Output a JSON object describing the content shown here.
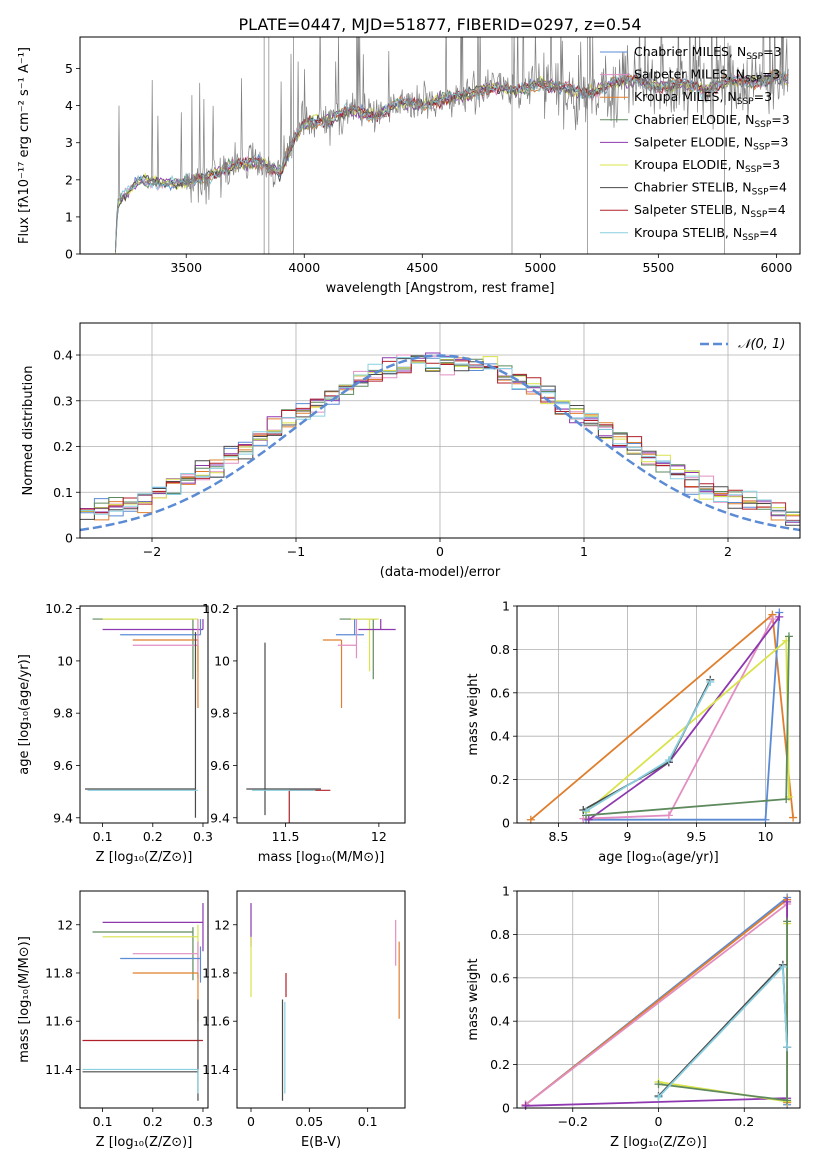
{
  "figure": {
    "title": "PLATE=0447, MJD=51877, FIBERID=0297, z=0.54"
  },
  "colors": {
    "chabrier_miles": "#5b8bd4",
    "salpeter_miles": "#e38ec2",
    "kroupa_miles": "#df7f2e",
    "chabrier_elodie": "#5f8a5e",
    "salpeter_elodie": "#8e38b0",
    "kroupa_elodie": "#d9e34a",
    "chabrier_stelib": "#4a4a4a",
    "salpeter_stelib": "#b0202a",
    "kroupa_stelib": "#89cfe0",
    "data_gray": "#808080",
    "gaussian": "#5b8bd4",
    "grid": "#b0b0b0"
  },
  "chart_data": [
    {
      "id": "spectrum",
      "type": "line",
      "title": "PLATE=0447, MJD=51877, FIBERID=0297, z=0.54",
      "xlabel": "wavelength [Angstrom, rest frame]",
      "ylabel": "Flux [fλ10⁻¹⁷ erg cm⁻² s⁻¹ A⁻¹]",
      "xlim": [
        3050,
        6100
      ],
      "ylim": [
        0,
        5.85
      ],
      "xticks": [
        3500,
        4000,
        4500,
        5000,
        5500,
        6000
      ],
      "yticks": [
        0,
        1,
        2,
        3,
        4,
        5
      ],
      "grid": false,
      "legend_placement": "top-right",
      "legend": [
        {
          "label": "Chabrier MILES, N",
          "sub": "SSP",
          "tail": "=3",
          "color_key": "chabrier_miles"
        },
        {
          "label": "Salpeter MILES, N",
          "sub": "SSP",
          "tail": "=3",
          "color_key": "salpeter_miles"
        },
        {
          "label": "Kroupa MILES, N",
          "sub": "SSP",
          "tail": "=3",
          "color_key": "kroupa_miles"
        },
        {
          "label": "Chabrier ELODIE, N",
          "sub": "SSP",
          "tail": "=3",
          "color_key": "chabrier_elodie"
        },
        {
          "label": "Salpeter ELODIE, N",
          "sub": "SSP",
          "tail": "=3",
          "color_key": "salpeter_elodie"
        },
        {
          "label": "Kroupa ELODIE, N",
          "sub": "SSP",
          "tail": "=3",
          "color_key": "kroupa_elodie"
        },
        {
          "label": "Chabrier STELIB, N",
          "sub": "SSP",
          "tail": "=4",
          "color_key": "chabrier_stelib"
        },
        {
          "label": "Salpeter STELIB, N",
          "sub": "SSP",
          "tail": "=4",
          "color_key": "salpeter_stelib"
        },
        {
          "label": "Kroupa STELIB, N",
          "sub": "SSP",
          "tail": "=4",
          "color_key": "kroupa_stelib"
        }
      ],
      "continuum": [
        [
          3200,
          0.0
        ],
        [
          3210,
          1.4
        ],
        [
          3300,
          2.0
        ],
        [
          3400,
          1.9
        ],
        [
          3500,
          1.95
        ],
        [
          3600,
          2.1
        ],
        [
          3700,
          2.4
        ],
        [
          3800,
          2.5
        ],
        [
          3900,
          2.2
        ],
        [
          3950,
          3.0
        ],
        [
          4000,
          3.5
        ],
        [
          4100,
          3.6
        ],
        [
          4200,
          3.9
        ],
        [
          4300,
          3.7
        ],
        [
          4400,
          4.1
        ],
        [
          4500,
          4.0
        ],
        [
          4600,
          4.2
        ],
        [
          4700,
          4.3
        ],
        [
          4800,
          4.5
        ],
        [
          4900,
          4.4
        ],
        [
          5000,
          4.6
        ],
        [
          5100,
          4.5
        ],
        [
          5200,
          4.3
        ],
        [
          5300,
          4.6
        ],
        [
          5400,
          4.7
        ],
        [
          5500,
          4.5
        ],
        [
          5600,
          4.6
        ],
        [
          5700,
          4.4
        ],
        [
          5800,
          4.7
        ],
        [
          5900,
          4.6
        ],
        [
          6000,
          4.8
        ],
        [
          6050,
          4.7
        ]
      ]
    },
    {
      "id": "histogram",
      "type": "line",
      "xlabel": "(data-model)/error",
      "ylabel": "Normed distribution",
      "xlim": [
        -2.5,
        2.5
      ],
      "ylim": [
        0,
        0.47
      ],
      "xticks": [
        -2,
        -1,
        0,
        1,
        2
      ],
      "yticks": [
        0.0,
        0.1,
        0.2,
        0.3,
        0.4
      ],
      "grid": true,
      "legend_placement": "top-right",
      "gaussian_label": "𝒩(0, 1)",
      "bin_width": 0.1
    },
    {
      "id": "z_age",
      "type": "scatter",
      "xlabel": "Z [log₁₀(Z/Z⊙)]",
      "ylabel": "age  [log₁₀(age/yr)]",
      "xlim": [
        0.055,
        0.31
      ],
      "ylim": [
        9.38,
        10.21
      ],
      "xticks": [
        0.1,
        0.2,
        0.3
      ],
      "yticks": [
        9.4,
        9.6,
        9.8,
        10.0,
        10.2
      ],
      "errorbars": [
        {
          "color_key": "chabrier_elodie",
          "x": 0.28,
          "y": 10.16,
          "xerr": [
            0.2,
            0.0
          ],
          "yerr": [
            0.23,
            0.0
          ]
        },
        {
          "color_key": "kroupa_elodie",
          "x": 0.29,
          "y": 10.16,
          "xerr": [
            0.19,
            0.0
          ],
          "yerr": [
            0.2,
            0.0
          ]
        },
        {
          "color_key": "salpeter_elodie",
          "x": 0.3,
          "y": 10.12,
          "xerr": [
            0.2,
            0.0
          ],
          "yerr": [
            0.0,
            0.04
          ]
        },
        {
          "color_key": "chabrier_miles",
          "x": 0.295,
          "y": 10.1,
          "xerr": [
            0.16,
            0.0
          ],
          "yerr": [
            0.0,
            0.06
          ]
        },
        {
          "color_key": "kroupa_miles",
          "x": 0.29,
          "y": 10.08,
          "xerr": [
            0.13,
            0.0
          ],
          "yerr": [
            0.26,
            0.0
          ]
        },
        {
          "color_key": "salpeter_miles",
          "x": 0.29,
          "y": 10.06,
          "xerr": [
            0.13,
            0.0
          ],
          "yerr": [
            0.0,
            0.1
          ]
        },
        {
          "color_key": "chabrier_stelib",
          "x": 0.285,
          "y": 9.51,
          "xerr": [
            0.22,
            0.0
          ],
          "yerr": [
            0.11,
            0.6
          ]
        },
        {
          "color_key": "kroupa_stelib",
          "x": 0.29,
          "y": 9.505,
          "xerr": [
            0.22,
            0.0
          ],
          "yerr": [
            0.0,
            0.0
          ]
        }
      ]
    },
    {
      "id": "mass_age",
      "type": "scatter",
      "xlabel": "mass [log₁₀(M/M⊙)]",
      "ylabel": "",
      "xlim": [
        11.24,
        12.14
      ],
      "ylim": [
        9.38,
        10.21
      ],
      "xticks": [
        11.5,
        12.0
      ],
      "yticks": [
        9.4,
        9.6,
        9.8,
        10.0,
        10.2
      ],
      "errorbars": [
        {
          "color_key": "chabrier_elodie",
          "x": 11.97,
          "y": 10.16,
          "xerr": [
            0.18,
            0.02
          ],
          "yerr": [
            0.23,
            0.0
          ]
        },
        {
          "color_key": "kroupa_elodie",
          "x": 11.95,
          "y": 10.16,
          "xerr": [
            0.1,
            0.05
          ],
          "yerr": [
            0.2,
            0.0
          ]
        },
        {
          "color_key": "salpeter_elodie",
          "x": 12.01,
          "y": 10.12,
          "xerr": [
            0.12,
            0.08
          ],
          "yerr": [
            0.0,
            0.04
          ]
        },
        {
          "color_key": "chabrier_miles",
          "x": 11.87,
          "y": 10.1,
          "xerr": [
            0.1,
            0.05
          ],
          "yerr": [
            0.0,
            0.06
          ]
        },
        {
          "color_key": "kroupa_miles",
          "x": 11.8,
          "y": 10.08,
          "xerr": [
            0.1,
            0.0
          ],
          "yerr": [
            0.26,
            0.0
          ]
        },
        {
          "color_key": "salpeter_miles",
          "x": 11.88,
          "y": 10.06,
          "xerr": [
            0.1,
            0.0
          ],
          "yerr": [
            0.05,
            0.1
          ]
        },
        {
          "color_key": "salpeter_stelib",
          "x": 11.52,
          "y": 9.505,
          "xerr": [
            0.0,
            0.22
          ],
          "yerr": [
            0.52,
            0.0
          ]
        },
        {
          "color_key": "chabrier_stelib",
          "x": 11.39,
          "y": 9.51,
          "xerr": [
            0.1,
            0.3
          ],
          "yerr": [
            0.1,
            0.56
          ]
        },
        {
          "color_key": "kroupa_stelib",
          "x": 11.4,
          "y": 9.505,
          "xerr": [
            0.08,
            0.26
          ],
          "yerr": [
            0.0,
            0.0
          ]
        }
      ]
    },
    {
      "id": "age_weight",
      "type": "line",
      "xlabel": "age  [log₁₀(age/yr)]",
      "ylabel": "mass weight",
      "xlim": [
        8.2,
        10.25
      ],
      "ylim": [
        0,
        1.0
      ],
      "xticks": [
        8.5,
        9.0,
        9.5,
        10.0
      ],
      "yticks": [
        0.0,
        0.2,
        0.4,
        0.6,
        0.8,
        1.0
      ],
      "grid": true,
      "series": [
        {
          "color_key": "kroupa_miles",
          "points": [
            [
              8.3,
              0.015
            ],
            [
              10.05,
              0.96
            ],
            [
              10.2,
              0.025
            ]
          ]
        },
        {
          "color_key": "chabrier_miles",
          "points": [
            [
              8.7,
              0.015
            ],
            [
              10.0,
              0.015
            ],
            [
              10.1,
              0.97
            ]
          ]
        },
        {
          "color_key": "salpeter_miles",
          "points": [
            [
              8.68,
              0.02
            ],
            [
              9.3,
              0.035
            ],
            [
              10.05,
              0.94
            ]
          ]
        },
        {
          "color_key": "salpeter_elodie",
          "points": [
            [
              8.72,
              0.015
            ],
            [
              9.3,
              0.28
            ],
            [
              10.1,
              0.95
            ]
          ]
        },
        {
          "color_key": "kroupa_elodie",
          "points": [
            [
              8.7,
              0.05
            ],
            [
              10.15,
              0.84
            ],
            [
              10.17,
              0.12
            ]
          ]
        },
        {
          "color_key": "chabrier_elodie",
          "points": [
            [
              8.7,
              0.035
            ],
            [
              10.15,
              0.11
            ],
            [
              10.17,
              0.86
            ]
          ]
        },
        {
          "color_key": "chabrier_stelib",
          "points": [
            [
              8.68,
              0.06
            ],
            [
              9.3,
              0.28
            ],
            [
              9.6,
              0.66
            ]
          ]
        },
        {
          "color_key": "kroupa_stelib",
          "points": [
            [
              8.7,
              0.055
            ],
            [
              9.3,
              0.29
            ],
            [
              9.6,
              0.65
            ]
          ]
        }
      ]
    },
    {
      "id": "z_mass",
      "type": "scatter",
      "xlabel": "Z [log₁₀(Z/Z⊙)]",
      "ylabel": "mass [log₁₀(M/M⊙)]",
      "xlim": [
        0.055,
        0.31
      ],
      "ylim": [
        11.24,
        12.14
      ],
      "xticks": [
        0.1,
        0.2,
        0.3
      ],
      "yticks": [
        11.4,
        11.6,
        11.8,
        12.0
      ],
      "errorbars": [
        {
          "color_key": "salpeter_elodie",
          "x": 0.3,
          "y": 12.01,
          "xerr": [
            0.2,
            0.0
          ],
          "yerr": [
            0.12,
            0.08
          ]
        },
        {
          "color_key": "chabrier_elodie",
          "x": 0.28,
          "y": 11.97,
          "xerr": [
            0.2,
            0.0
          ],
          "yerr": [
            0.2,
            0.02
          ]
        },
        {
          "color_key": "kroupa_elodie",
          "x": 0.29,
          "y": 11.95,
          "xerr": [
            0.19,
            0.0
          ],
          "yerr": [
            0.1,
            0.05
          ]
        },
        {
          "color_key": "salpeter_miles",
          "x": 0.29,
          "y": 11.88,
          "xerr": [
            0.13,
            0.0
          ],
          "yerr": [
            0.1,
            0.05
          ]
        },
        {
          "color_key": "chabrier_miles",
          "x": 0.295,
          "y": 11.86,
          "xerr": [
            0.16,
            0.0
          ],
          "yerr": [
            0.1,
            0.05
          ]
        },
        {
          "color_key": "kroupa_miles",
          "x": 0.29,
          "y": 11.8,
          "xerr": [
            0.13,
            0.0
          ],
          "yerr": [
            0.2,
            0.0
          ]
        },
        {
          "color_key": "salpeter_stelib",
          "x": 0.3,
          "y": 11.52,
          "xerr": [
            0.24,
            0.0
          ],
          "yerr": [
            0.0,
            0.0
          ]
        },
        {
          "color_key": "chabrier_stelib",
          "x": 0.29,
          "y": 11.39,
          "xerr": [
            0.23,
            0.0
          ],
          "yerr": [
            0.12,
            0.3
          ]
        },
        {
          "color_key": "kroupa_stelib",
          "x": 0.29,
          "y": 11.4,
          "xerr": [
            0.23,
            0.0
          ],
          "yerr": [
            0.1,
            0.0
          ]
        }
      ]
    },
    {
      "id": "ebv_mass",
      "type": "scatter",
      "xlabel": "E(B-V)",
      "ylabel": "",
      "xlim": [
        -0.012,
        0.132
      ],
      "ylim": [
        11.24,
        12.14
      ],
      "xticks": [
        0.0,
        0.05,
        0.1
      ],
      "yticks": [
        11.4,
        11.6,
        11.8,
        12.0
      ],
      "errorbars": [
        {
          "color_key": "salpeter_elodie",
          "x": 0.0,
          "y": 12.01,
          "xerr": [
            0,
            0
          ],
          "yerr": [
            0.1,
            0.08
          ]
        },
        {
          "color_key": "kroupa_elodie",
          "x": 0.0,
          "y": 11.95,
          "xerr": [
            0,
            0
          ],
          "yerr": [
            0.25,
            0.0
          ]
        },
        {
          "color_key": "salpeter_stelib",
          "x": 0.03,
          "y": 11.7,
          "xerr": [
            0,
            0
          ],
          "yerr": [
            0.0,
            0.1
          ]
        },
        {
          "color_key": "chabrier_stelib",
          "x": 0.027,
          "y": 11.5,
          "xerr": [
            0,
            0
          ],
          "yerr": [
            0.23,
            0.19
          ]
        },
        {
          "color_key": "kroupa_stelib",
          "x": 0.029,
          "y": 11.5,
          "xerr": [
            0,
            0
          ],
          "yerr": [
            0.2,
            0.18
          ]
        },
        {
          "color_key": "salpeter_miles",
          "x": 0.124,
          "y": 11.93,
          "xerr": [
            0,
            0
          ],
          "yerr": [
            0.1,
            0.09
          ]
        },
        {
          "color_key": "kroupa_miles",
          "x": 0.127,
          "y": 11.75,
          "xerr": [
            0,
            0
          ],
          "yerr": [
            0.14,
            0.18
          ]
        }
      ]
    },
    {
      "id": "z_weight",
      "type": "line",
      "xlabel": "Z [log₁₀(Z/Z⊙)]",
      "ylabel": "mass weight",
      "xlim": [
        -0.33,
        0.33
      ],
      "ylim": [
        0,
        1.0
      ],
      "xticks": [
        -0.2,
        0.0,
        0.2
      ],
      "yticks": [
        0.0,
        0.2,
        0.4,
        0.6,
        0.8,
        1.0
      ],
      "grid": true,
      "series": [
        {
          "color_key": "chabrier_miles",
          "points": [
            [
              -0.31,
              0.015
            ],
            [
              0.3,
              0.97
            ],
            [
              0.3,
              0.015
            ]
          ]
        },
        {
          "color_key": "kroupa_miles",
          "points": [
            [
              -0.31,
              0.015
            ],
            [
              0.3,
              0.96
            ],
            [
              0.3,
              0.025
            ]
          ]
        },
        {
          "color_key": "salpeter_miles",
          "points": [
            [
              -0.31,
              0.015
            ],
            [
              0.3,
              0.94
            ],
            [
              0.3,
              0.03
            ]
          ]
        },
        {
          "color_key": "salpeter_elodie",
          "points": [
            [
              -0.31,
              0.01
            ],
            [
              0.3,
              0.045
            ],
            [
              0.3,
              0.95
            ]
          ]
        },
        {
          "color_key": "kroupa_elodie",
          "points": [
            [
              0.0,
              0.12
            ],
            [
              0.3,
              0.03
            ],
            [
              0.3,
              0.85
            ]
          ]
        },
        {
          "color_key": "chabrier_elodie",
          "points": [
            [
              0.0,
              0.11
            ],
            [
              0.3,
              0.035
            ],
            [
              0.3,
              0.86
            ]
          ]
        },
        {
          "color_key": "chabrier_stelib",
          "points": [
            [
              0.0,
              0.055
            ],
            [
              0.29,
              0.66
            ],
            [
              0.3,
              0.28
            ]
          ]
        },
        {
          "color_key": "kroupa_stelib",
          "points": [
            [
              0.0,
              0.05
            ],
            [
              0.29,
              0.65
            ],
            [
              0.3,
              0.28
            ]
          ]
        }
      ]
    }
  ]
}
